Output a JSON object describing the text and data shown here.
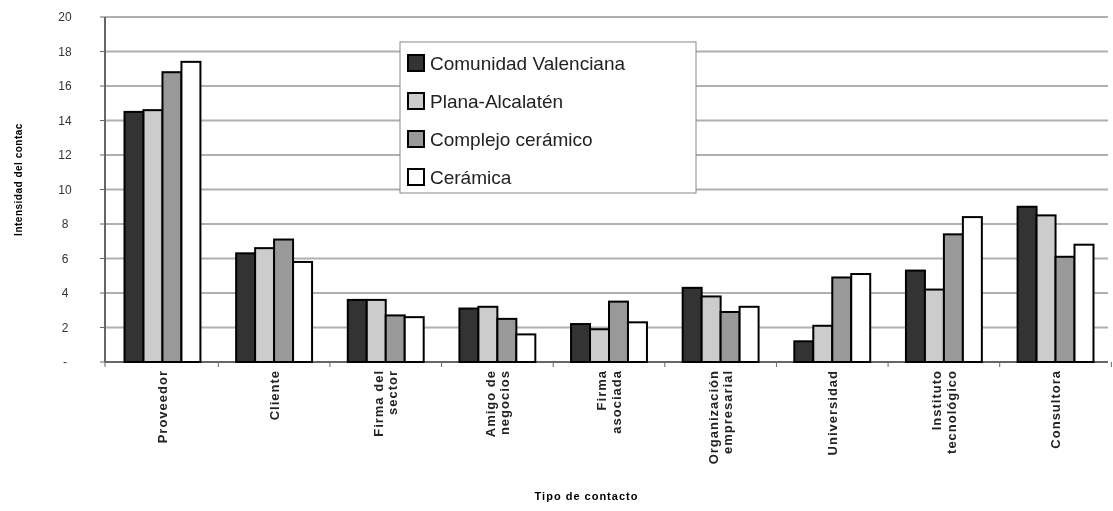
{
  "chart_data": {
    "type": "bar",
    "xlabel": "Tipo de contacto",
    "ylabel": "Intensidad del contac",
    "categories": [
      "Proveedor",
      "Cliente",
      "Firma del sector",
      "Amigo de negocios",
      "Firma asociada",
      "Organización empresarial",
      "Universidad",
      "Instituto tecnológico",
      "Consultora"
    ],
    "series": [
      {
        "name": "Comunidad Valenciana",
        "color": "#333333",
        "values": [
          14.5,
          6.3,
          3.6,
          3.1,
          2.2,
          4.3,
          1.2,
          5.3,
          9.0
        ]
      },
      {
        "name": "Plana-Alcalatén",
        "color": "#cccccc",
        "values": [
          14.6,
          6.6,
          3.6,
          3.2,
          1.9,
          3.8,
          2.1,
          4.2,
          8.5
        ]
      },
      {
        "name": "Complejo cerámico",
        "color": "#999999",
        "values": [
          16.8,
          7.1,
          2.7,
          2.5,
          3.5,
          2.9,
          4.9,
          7.4,
          6.1
        ]
      },
      {
        "name": "Cerámica",
        "color": "#ffffff",
        "values": [
          17.4,
          5.8,
          2.6,
          1.6,
          2.3,
          3.2,
          5.1,
          8.4,
          6.8
        ]
      }
    ],
    "ylim": [
      0,
      20
    ],
    "yticks": [
      {
        "value": 0,
        "label": "-"
      },
      2,
      4,
      6,
      8,
      10,
      12,
      14,
      16,
      18,
      20
    ],
    "grid": "y",
    "legend": "top"
  }
}
